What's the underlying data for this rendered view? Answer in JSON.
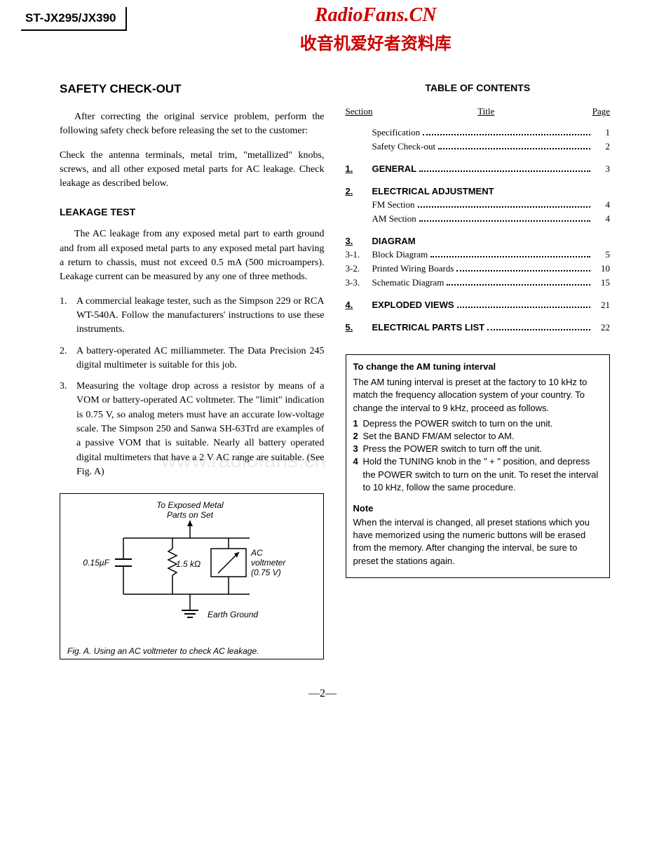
{
  "colors": {
    "brand_red": "#cc0000",
    "text": "#000000",
    "bg": "#ffffff",
    "watermark": "rgba(0,0,0,0.08)"
  },
  "header": {
    "model": "ST-JX295/JX390",
    "site_name": "RadioFans.CN",
    "site_tagline": "收音机爱好者资料库"
  },
  "watermark_text": "www.radiofans.cn",
  "left": {
    "title": "SAFETY CHECK-OUT",
    "para1": "After correcting the original service problem, perform the following safety check before releasing the set to the customer:",
    "para2": "Check the antenna terminals, metal trim, \"metallized\" knobs, screws, and all other exposed metal parts for AC leakage. Check leakage as described below.",
    "leak_heading": "LEAKAGE TEST",
    "leak_para": "The AC leakage from any exposed metal part to earth ground and from all exposed metal parts to any exposed metal part having a return to chassis, must not exceed 0.5 mA (500 microampers). Leakage current can be measured by any one of three methods.",
    "methods": [
      "A commercial leakage tester, such as the Simpson 229 or RCA WT-540A. Follow the manufacturers' instructions to use these instruments.",
      "A battery-operated AC milliammeter. The Data Precision 245 digital multimeter is suitable for this job.",
      "Measuring the voltage drop across a resistor by means of a VOM or battery-operated AC voltmeter. The \"limit\" indication is 0.75 V, so analog meters must have an accurate low-voltage scale. The Simpson 250 and Sanwa SH-63Trd are examples of a passive VOM that is suitable. Nearly all battery operated digital multimeters that have a 2 V AC range are suitable. (See Fig. A)"
    ],
    "figure": {
      "top_label_1": "To Exposed Metal",
      "top_label_2": "Parts on Set",
      "cap_label": "0.15µF",
      "res_label": "1.5 kΩ",
      "meter_label_1": "AC",
      "meter_label_2": "voltmeter",
      "meter_label_3": "(0.75 V)",
      "ground_label": "Earth Ground",
      "caption": "Fig. A.   Using an AC voltmeter to check AC leakage."
    }
  },
  "toc": {
    "title": "TABLE OF CONTENTS",
    "head_section": "Section",
    "head_title": "Title",
    "head_page": "Page",
    "pre_items": [
      {
        "title": "Specification",
        "page": "1"
      },
      {
        "title": "Safety Check-out",
        "page": "2"
      }
    ],
    "sections": [
      {
        "num": "1.",
        "title": "GENERAL",
        "page": "3",
        "items": []
      },
      {
        "num": "2.",
        "title": "ELECTRICAL ADJUSTMENT",
        "page": "",
        "items": [
          {
            "num": "",
            "title": "FM Section",
            "page": "4"
          },
          {
            "num": "",
            "title": "AM Section",
            "page": "4"
          }
        ]
      },
      {
        "num": "3.",
        "title": "DIAGRAM",
        "page": "",
        "items": [
          {
            "num": "3-1.",
            "title": "Block Diagram",
            "page": "5"
          },
          {
            "num": "3-2.",
            "title": "Printed Wiring Boards",
            "page": "10"
          },
          {
            "num": "3-3.",
            "title": "Schematic Diagram",
            "page": "15"
          }
        ]
      },
      {
        "num": "4.",
        "title": "EXPLODED VIEWS",
        "page": "21",
        "items": []
      },
      {
        "num": "5.",
        "title": "ELECTRICAL PARTS LIST",
        "page": "22",
        "items": []
      }
    ]
  },
  "notebox": {
    "title": "To change the AM tuning interval",
    "intro": "The AM tuning interval is preset at the factory to 10 kHz to match the frequency allocation system of your country. To change the interval to 9 kHz, proceed as follows.",
    "steps": [
      "Depress the POWER switch to turn on the unit.",
      "Set the BAND FM/AM selector to AM.",
      "Press the POWER switch to turn off the unit.",
      "Hold the TUNING knob in the \" + \" position, and depress the POWER switch to turn on the unit. To reset the interval to 10 kHz, follow the same procedure."
    ],
    "note_heading": "Note",
    "note_body": "When the interval is changed, all preset stations which you have memorized using the numeric buttons will be erased from the memory. After changing the interval, be sure to preset the stations again."
  },
  "page_number": "—2—"
}
